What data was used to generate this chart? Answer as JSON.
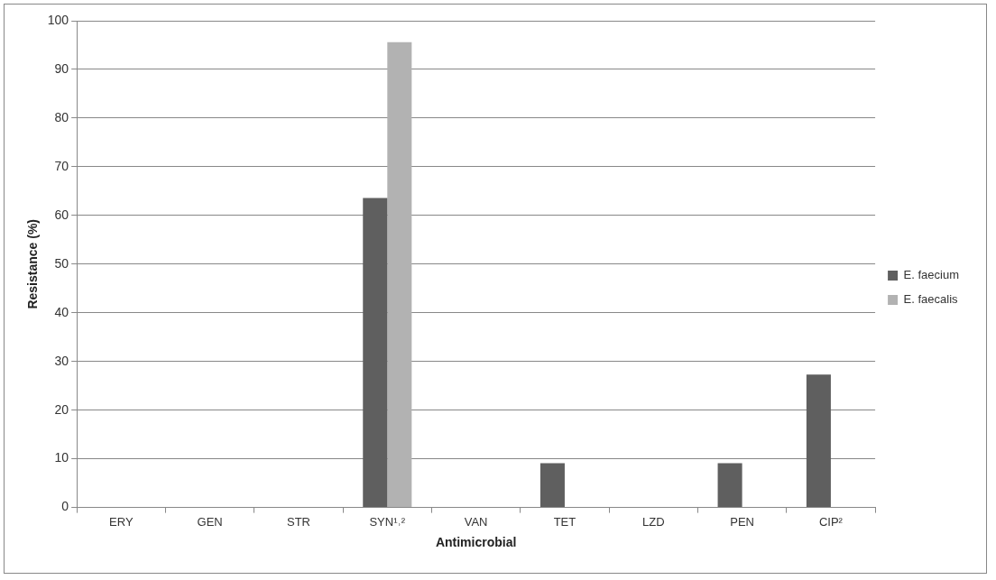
{
  "chart_data": {
    "type": "bar",
    "xlabel": "Antimicrobial",
    "ylabel": "Resistance (%)",
    "categories": [
      "ERY",
      "GEN",
      "STR",
      "SYN¹˒²",
      "VAN",
      "TET",
      "LZD",
      "PEN",
      "CIP²"
    ],
    "series": [
      {
        "name": "E. faecium",
        "color": "#5f5f5f",
        "values": [
          0,
          0,
          0,
          63.6,
          0,
          9.1,
          0,
          9.1,
          27.3
        ]
      },
      {
        "name": "E. faecalis",
        "color": "#b2b2b2",
        "values": [
          0,
          0,
          0,
          95.6,
          0,
          0,
          0,
          0,
          0
        ]
      }
    ],
    "ylim": [
      0,
      100
    ],
    "yticks": [
      0,
      10,
      20,
      30,
      40,
      50,
      60,
      70,
      80,
      90,
      100
    ],
    "grid": "y",
    "legend": "right"
  }
}
